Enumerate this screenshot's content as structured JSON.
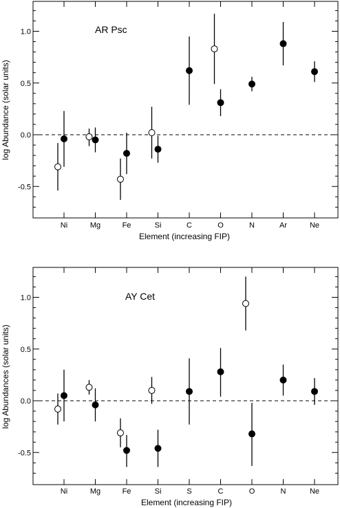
{
  "chart_data": [
    {
      "type": "scatter",
      "title": "AR Psc",
      "xlabel": "Element (increasing FIP)",
      "ylabel": "log Abundance (solar units)",
      "categories": [
        "Ni",
        "Mg",
        "Fe",
        "Si",
        "C",
        "O",
        "N",
        "Ar",
        "Ne"
      ],
      "ylim": [
        -0.8,
        1.3
      ],
      "yticks": [
        "-0.5",
        "0.0",
        "0.5",
        "1.0"
      ],
      "reference_line": 0.0,
      "series": [
        {
          "marker": "open",
          "points": [
            {
              "cat": 0,
              "y": -0.31,
              "lo": -0.54,
              "hi": -0.08
            },
            {
              "cat": 1,
              "y": -0.02,
              "lo": -0.11,
              "hi": 0.06
            },
            {
              "cat": 2,
              "y": -0.43,
              "lo": -0.63,
              "hi": -0.23
            },
            {
              "cat": 3,
              "y": 0.02,
              "lo": -0.23,
              "hi": 0.27
            },
            {
              "cat": 5,
              "y": 0.83,
              "lo": 0.49,
              "hi": 1.17
            }
          ]
        },
        {
          "marker": "filled",
          "points": [
            {
              "cat": 0,
              "y": -0.04,
              "lo": -0.31,
              "hi": 0.23
            },
            {
              "cat": 1,
              "y": -0.05,
              "lo": -0.17,
              "hi": 0.07
            },
            {
              "cat": 2,
              "y": -0.18,
              "lo": -0.38,
              "hi": 0.02
            },
            {
              "cat": 3,
              "y": -0.14,
              "lo": -0.27,
              "hi": -0.01
            },
            {
              "cat": 4,
              "y": 0.62,
              "lo": 0.29,
              "hi": 0.95
            },
            {
              "cat": 5,
              "y": 0.31,
              "lo": 0.18,
              "hi": 0.44
            },
            {
              "cat": 6,
              "y": 0.49,
              "lo": 0.42,
              "hi": 0.56
            },
            {
              "cat": 7,
              "y": 0.88,
              "lo": 0.67,
              "hi": 1.09
            },
            {
              "cat": 8,
              "y": 0.61,
              "lo": 0.51,
              "hi": 0.71
            }
          ]
        }
      ]
    },
    {
      "type": "scatter",
      "title": "AY Cet",
      "xlabel": "Element (increasing FIP)",
      "ylabel": "log Abundances (solar units)",
      "categories": [
        "Ni",
        "Mg",
        "Fe",
        "Si",
        "S",
        "C",
        "O",
        "N",
        "Ne"
      ],
      "ylim": [
        -0.8,
        1.3
      ],
      "yticks": [
        "-0.5",
        "0.0",
        "0.5",
        "1.0"
      ],
      "reference_line": 0.0,
      "series": [
        {
          "marker": "open",
          "points": [
            {
              "cat": 0,
              "y": -0.08,
              "lo": -0.23,
              "hi": 0.07
            },
            {
              "cat": 1,
              "y": 0.13,
              "lo": 0.06,
              "hi": 0.2
            },
            {
              "cat": 2,
              "y": -0.31,
              "lo": -0.45,
              "hi": -0.17
            },
            {
              "cat": 3,
              "y": 0.1,
              "lo": -0.03,
              "hi": 0.23
            },
            {
              "cat": 6,
              "y": 0.94,
              "lo": 0.68,
              "hi": 1.2
            }
          ]
        },
        {
          "marker": "filled",
          "points": [
            {
              "cat": 0,
              "y": 0.05,
              "lo": -0.2,
              "hi": 0.3
            },
            {
              "cat": 1,
              "y": -0.04,
              "lo": -0.2,
              "hi": 0.12
            },
            {
              "cat": 2,
              "y": -0.48,
              "lo": -0.64,
              "hi": -0.33
            },
            {
              "cat": 3,
              "y": -0.46,
              "lo": -0.64,
              "hi": -0.28
            },
            {
              "cat": 4,
              "y": 0.09,
              "lo": -0.23,
              "hi": 0.41
            },
            {
              "cat": 5,
              "y": 0.28,
              "lo": 0.04,
              "hi": 0.51
            },
            {
              "cat": 6,
              "y": -0.32,
              "lo": -0.63,
              "hi": -0.02
            },
            {
              "cat": 7,
              "y": 0.2,
              "lo": 0.05,
              "hi": 0.35
            },
            {
              "cat": 8,
              "y": 0.09,
              "lo": -0.04,
              "hi": 0.22
            }
          ]
        }
      ]
    }
  ]
}
